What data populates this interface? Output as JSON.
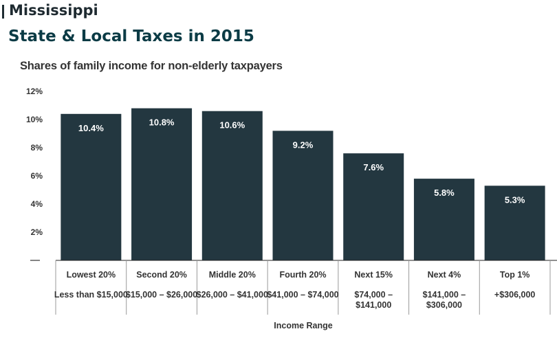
{
  "header": {
    "state": "Mississippi",
    "title": "State & Local Taxes in 2015"
  },
  "colors": {
    "bar": "#233740",
    "bar_label": "#ffffff",
    "divider": "#999999"
  },
  "chart_data": {
    "type": "bar",
    "title": "Shares of family income for non-elderly taxpayers",
    "xlabel": "Income Range",
    "ylabel": "",
    "ylim": [
      0,
      12
    ],
    "yticks": [
      "",
      "2%",
      "4%",
      "6%",
      "8%",
      "10%",
      "12%"
    ],
    "categories": [
      "Lowest 20%",
      "Second 20%",
      "Middle 20%",
      "Fourth 20%",
      "Next 15%",
      "Next 4%",
      "Top 1%"
    ],
    "income_ranges": [
      [
        "Less than $15,000"
      ],
      [
        "$15,000 – $26,000"
      ],
      [
        "$26,000 – $41,000"
      ],
      [
        "$41,000 – $74,000"
      ],
      [
        "$74,000 –",
        "$141,000"
      ],
      [
        "$141,000 –",
        "$306,000"
      ],
      [
        "+$306,000"
      ]
    ],
    "values": [
      10.4,
      10.8,
      10.6,
      9.2,
      7.6,
      5.8,
      5.3
    ],
    "value_labels": [
      "10.4%",
      "10.8%",
      "10.6%",
      "9.2%",
      "7.6%",
      "5.8%",
      "5.3%"
    ],
    "grid": false,
    "legend": "none"
  }
}
